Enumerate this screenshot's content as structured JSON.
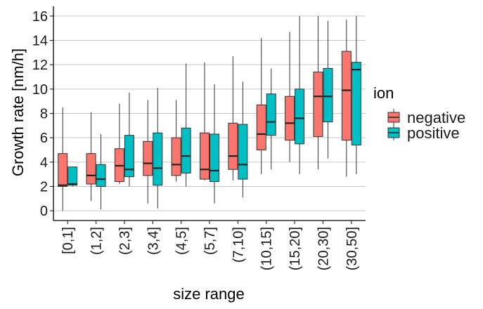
{
  "chart_data": {
    "type": "boxplot",
    "xlabel": "size range",
    "ylabel": "Growth rate [nm/h]",
    "ylim": [
      -0.8,
      16.8
    ],
    "yticks": [
      0,
      2,
      4,
      6,
      8,
      10,
      12,
      14,
      16
    ],
    "grid": "horizontal major",
    "legend": {
      "title": "ion",
      "placement": "right"
    },
    "categories": [
      "[0,1]",
      "(1,2]",
      "(2,3]",
      "(3,4]",
      "(4,5]",
      "(5,7]",
      "(7,10]",
      "(10,15]",
      "(15,20]",
      "(20,30]",
      "(30,50]"
    ],
    "series": [
      {
        "name": "negative",
        "color": "#F8766D",
        "boxes": [
          {
            "min": 0.0,
            "q1": 2.0,
            "median": 2.1,
            "q3": 4.7,
            "max": 8.5
          },
          {
            "min": 0.8,
            "q1": 2.2,
            "median": 2.9,
            "q3": 4.7,
            "max": 8.1
          },
          {
            "min": 2.2,
            "q1": 2.4,
            "median": 3.7,
            "q3": 5.1,
            "max": 8.8
          },
          {
            "min": 0.6,
            "q1": 2.9,
            "median": 3.9,
            "q3": 5.7,
            "max": 9.1
          },
          {
            "min": 2.4,
            "q1": 2.9,
            "median": 3.8,
            "q3": 6.0,
            "max": 9.1
          },
          {
            "min": 2.5,
            "q1": 2.6,
            "median": 3.4,
            "q3": 6.4,
            "max": 12.2
          },
          {
            "min": 2.5,
            "q1": 3.4,
            "median": 4.5,
            "q3": 7.2,
            "max": 12.7
          },
          {
            "min": 3.0,
            "q1": 5.0,
            "median": 6.3,
            "q3": 8.7,
            "max": 14.2
          },
          {
            "min": 4.0,
            "q1": 5.8,
            "median": 7.2,
            "q3": 9.4,
            "max": 14.7
          },
          {
            "min": 3.4,
            "q1": 6.1,
            "median": 9.4,
            "q3": 11.4,
            "max": 16.0
          },
          {
            "min": 2.8,
            "q1": 5.8,
            "median": 9.9,
            "q3": 13.1,
            "max": 15.7
          }
        ]
      },
      {
        "name": "positive",
        "color": "#00BFC4",
        "boxes": [
          {
            "min": 2.0,
            "q1": 2.1,
            "median": 2.2,
            "q3": 3.6,
            "max": 3.6
          },
          {
            "min": 0.1,
            "q1": 2.0,
            "median": 2.6,
            "q3": 3.8,
            "max": 6.3
          },
          {
            "min": 2.0,
            "q1": 2.8,
            "median": 3.4,
            "q3": 6.2,
            "max": 9.7
          },
          {
            "min": 0.2,
            "q1": 2.1,
            "median": 3.5,
            "q3": 6.4,
            "max": 10.1
          },
          {
            "min": 2.0,
            "q1": 3.1,
            "median": 4.5,
            "q3": 6.8,
            "max": 12.1
          },
          {
            "min": 0.6,
            "q1": 2.4,
            "median": 3.3,
            "q3": 6.3,
            "max": 10.4
          },
          {
            "min": 1.1,
            "q1": 2.6,
            "median": 3.8,
            "q3": 7.1,
            "max": 10.6
          },
          {
            "min": 3.4,
            "q1": 6.2,
            "median": 7.3,
            "q3": 9.6,
            "max": 11.7
          },
          {
            "min": 3.0,
            "q1": 5.5,
            "median": 7.6,
            "q3": 10.0,
            "max": 16.0
          },
          {
            "min": 4.3,
            "q1": 7.3,
            "median": 9.4,
            "q3": 11.7,
            "max": 15.6
          },
          {
            "min": 3.0,
            "q1": 5.4,
            "median": 11.6,
            "q3": 12.2,
            "max": 16.0
          }
        ]
      }
    ]
  }
}
